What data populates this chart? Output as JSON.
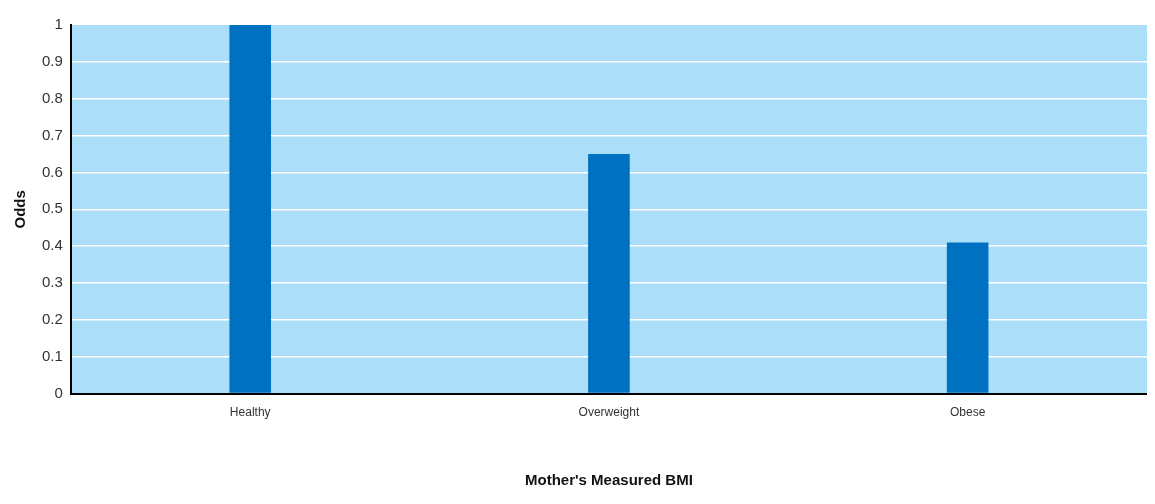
{
  "chart_data": {
    "type": "bar",
    "xlabel": "Mother's Measured BMI",
    "ylabel": "Odds",
    "categories": [
      "Healthy",
      "Overweight",
      "Obese"
    ],
    "values": [
      1,
      0.65,
      0.41
    ],
    "color": "#0070c0",
    "ylim": [
      0,
      1
    ],
    "yticks": [
      0,
      0.1,
      0.2,
      0.3,
      0.4,
      0.5,
      0.6,
      0.7,
      0.8,
      0.9,
      1
    ],
    "grid": "y",
    "legend": false
  }
}
